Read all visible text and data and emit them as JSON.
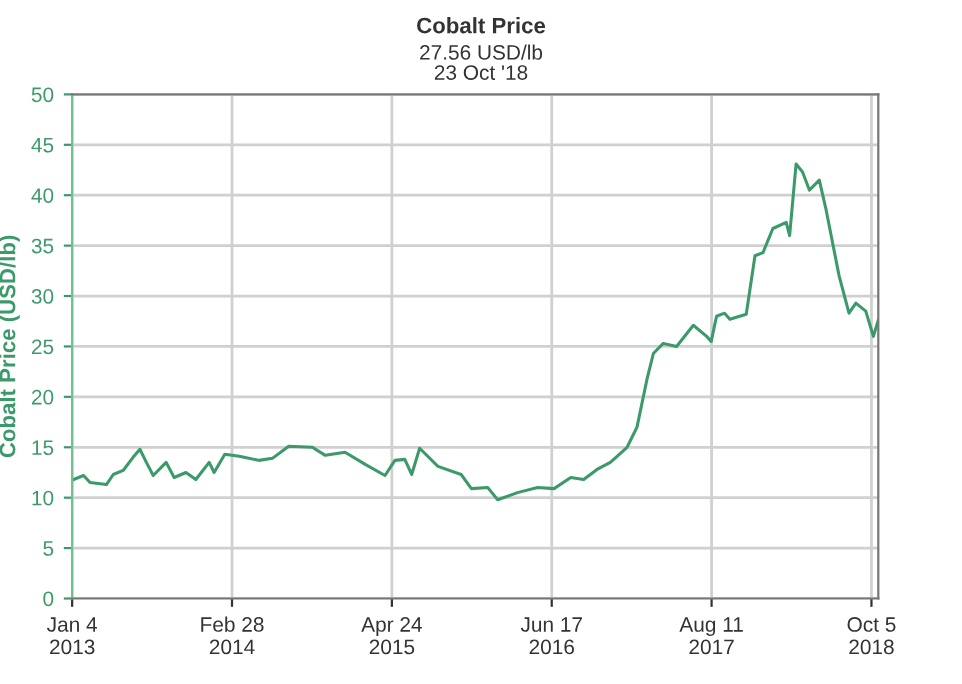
{
  "chart_data": {
    "type": "line",
    "title": "Cobalt Price",
    "subtitle": "27.56 USD/lb\n23 Oct '18",
    "ylabel": "Cobalt Price (USD/lb)",
    "x": [
      "2013-01-08",
      "2013-02-03",
      "2013-02-20",
      "2013-04-04",
      "2013-04-22",
      "2013-05-18",
      "2013-06-13",
      "2013-07-01",
      "2013-07-18",
      "2013-08-05",
      "2013-09-08",
      "2013-09-29",
      "2013-10-30",
      "2013-11-25",
      "2013-12-30",
      "2014-01-12",
      "2014-02-09",
      "2014-03-19",
      "2014-05-10",
      "2014-06-14",
      "2014-07-27",
      "2014-09-27",
      "2014-10-31",
      "2014-12-22",
      "2015-02-13",
      "2015-04-06",
      "2015-05-02",
      "2015-05-28",
      "2015-06-15",
      "2015-07-06",
      "2015-08-23",
      "2015-10-23",
      "2015-11-19",
      "2016-01-01",
      "2016-01-27",
      "2016-03-19",
      "2016-05-11",
      "2016-06-23",
      "2016-08-06",
      "2016-09-09",
      "2016-10-14",
      "2016-11-18",
      "2017-01-01",
      "2017-01-27",
      "2017-02-22",
      "2017-03-11",
      "2017-04-06",
      "2017-05-11",
      "2017-06-24",
      "2017-07-29",
      "2017-08-10",
      "2017-08-24",
      "2017-09-14",
      "2017-09-28",
      "2017-11-10",
      "2017-12-03",
      "2017-12-24",
      "2018-01-19",
      "2018-02-23",
      "2018-03-04",
      "2018-03-21",
      "2018-04-07",
      "2018-04-25",
      "2018-05-21",
      "2018-06-07",
      "2018-07-12",
      "2018-08-07",
      "2018-08-25",
      "2018-09-20",
      "2018-10-10",
      "2018-10-23"
    ],
    "series": [
      {
        "color": "#3c9a6a",
        "values": [
          11.8,
          12.2,
          11.5,
          11.3,
          12.3,
          12.7,
          14.0,
          14.8,
          13.5,
          12.2,
          13.5,
          12.0,
          12.5,
          11.8,
          13.5,
          12.5,
          14.3,
          14.1,
          13.7,
          13.9,
          15.1,
          15.0,
          14.2,
          14.5,
          13.3,
          12.2,
          13.7,
          13.8,
          12.3,
          14.9,
          13.1,
          12.3,
          10.9,
          11.0,
          9.8,
          10.5,
          11.0,
          10.9,
          12.0,
          11.8,
          12.8,
          13.5,
          15.0,
          17.0,
          21.7,
          24.3,
          25.3,
          25.0,
          27.1,
          26.0,
          25.5,
          28.0,
          28.3,
          27.7,
          28.2,
          34.0,
          34.3,
          36.7,
          37.3,
          36.0,
          43.1,
          42.3,
          40.5,
          41.5,
          38.7,
          32.0,
          28.3,
          29.3,
          28.5,
          26.0,
          27.6
        ]
      }
    ],
    "xlim": [
      "2013-01-04",
      "2018-10-23"
    ],
    "xticks": [
      {
        "value": "2013-01-04",
        "label": "Jan 4\n2013"
      },
      {
        "value": "2014-02-28",
        "label": "Feb 28\n2014"
      },
      {
        "value": "2015-04-24",
        "label": "Apr 24\n2015"
      },
      {
        "value": "2016-06-17",
        "label": "Jun 17\n2016"
      },
      {
        "value": "2017-08-11",
        "label": "Aug 11\n2017"
      },
      {
        "value": "2018-10-05",
        "label": "Oct 5\n2018"
      }
    ],
    "ylim": [
      0,
      50
    ],
    "yticks": [
      0,
      5,
      10,
      15,
      20,
      25,
      30,
      35,
      40,
      45,
      50
    ],
    "grid": true
  }
}
